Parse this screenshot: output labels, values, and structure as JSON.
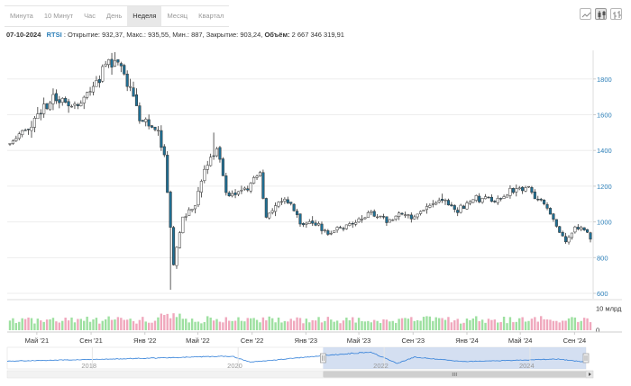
{
  "tabs": [
    {
      "label": "Минута",
      "active": false
    },
    {
      "label": "10 Минут",
      "active": false
    },
    {
      "label": "Час",
      "active": false
    },
    {
      "label": "День",
      "active": false
    },
    {
      "label": "Неделя",
      "active": true
    },
    {
      "label": "Месяц",
      "active": false
    },
    {
      "label": "Квартал",
      "active": false
    }
  ],
  "toolbar_icons": [
    "line-chart-icon",
    "candlestick-icon",
    "ohlc-bars-icon"
  ],
  "info": {
    "date": "07-10-2024",
    "symbol": "RTSI",
    "open_label": ": Открытие:",
    "open": "932,37,",
    "high_label": "Макс.:",
    "high": "935,55,",
    "low_label": "Мин.:",
    "low": "887,",
    "close_label": "Закрытие:",
    "close": "903,24,",
    "volume_label": "Объём:",
    "volume": "2 667 346 319,91"
  },
  "colors": {
    "up": "#ffffff",
    "down": "#1f6f94",
    "wick": "#333333",
    "vol_up": "#9de0a0",
    "vol_down": "#f0a8bd",
    "axis_text": "#2c7fb8",
    "nav_line": "#2f7ed8",
    "nav_fill": "#c5d4ec"
  },
  "chart_data": {
    "type": "candlestick",
    "interval": "week",
    "x_range": [
      "2024-03-01",
      "2024-10-07"
    ],
    "y_axis": {
      "ticks": [
        600,
        800,
        1000,
        1200,
        1400,
        1600,
        1800
      ],
      "labels": [
        "600",
        "800",
        "1000",
        "1200",
        "1400",
        "1600",
        "1800"
      ],
      "range": [
        570,
        1960
      ]
    },
    "volume_axis": {
      "ticks": [
        0,
        10
      ],
      "labels": [
        "0",
        "10 млрд"
      ],
      "range": [
        0,
        12
      ]
    },
    "x_tick_labels": [
      "Май '21",
      "Сен '21",
      "Янв '22",
      "Май '22",
      "Сен '22",
      "Янв '23",
      "Май '23",
      "Сен '23",
      "Янв '24",
      "Май '24",
      "Сен '24"
    ],
    "anchors": [
      {
        "x": "2021-03-01",
        "y": 1440
      },
      {
        "x": "2021-03-29",
        "y": 1500
      },
      {
        "x": "2021-04-26",
        "y": 1560
      },
      {
        "x": "2021-06-07",
        "y": 1690
      },
      {
        "x": "2021-08-02",
        "y": 1650
      },
      {
        "x": "2021-09-06",
        "y": 1770
      },
      {
        "x": "2021-10-25",
        "y": 1920
      },
      {
        "x": "2021-11-15",
        "y": 1820
      },
      {
        "x": "2021-12-20",
        "y": 1590
      },
      {
        "x": "2022-01-31",
        "y": 1490
      },
      {
        "x": "2022-02-14",
        "y": 1380
      },
      {
        "x": "2022-03-07",
        "y": 760
      },
      {
        "x": "2022-03-28",
        "y": 1020
      },
      {
        "x": "2022-04-25",
        "y": 1100
      },
      {
        "x": "2022-05-23",
        "y": 1340
      },
      {
        "x": "2022-06-13",
        "y": 1420
      },
      {
        "x": "2022-07-04",
        "y": 1170
      },
      {
        "x": "2022-08-15",
        "y": 1170
      },
      {
        "x": "2022-09-19",
        "y": 1280
      },
      {
        "x": "2022-10-03",
        "y": 1020
      },
      {
        "x": "2022-11-14",
        "y": 1140
      },
      {
        "x": "2022-12-19",
        "y": 1000
      },
      {
        "x": "2023-01-30",
        "y": 980
      },
      {
        "x": "2023-02-20",
        "y": 930
      },
      {
        "x": "2023-04-03",
        "y": 980
      },
      {
        "x": "2023-05-29",
        "y": 1050
      },
      {
        "x": "2023-07-10",
        "y": 1000
      },
      {
        "x": "2023-08-07",
        "y": 1050
      },
      {
        "x": "2023-09-04",
        "y": 1020
      },
      {
        "x": "2023-10-30",
        "y": 1130
      },
      {
        "x": "2023-12-11",
        "y": 1070
      },
      {
        "x": "2024-01-22",
        "y": 1130
      },
      {
        "x": "2024-03-04",
        "y": 1120
      },
      {
        "x": "2024-04-08",
        "y": 1170
      },
      {
        "x": "2024-05-20",
        "y": 1200
      },
      {
        "x": "2024-06-03",
        "y": 1140
      },
      {
        "x": "2024-07-01",
        "y": 1080
      },
      {
        "x": "2024-08-12",
        "y": 880
      },
      {
        "x": "2024-09-02",
        "y": 960
      },
      {
        "x": "2024-09-23",
        "y": 960
      },
      {
        "x": "2024-10-07",
        "y": 903
      }
    ],
    "navigator": {
      "tick_labels": [
        "2018",
        "2020",
        "2022",
        "2024"
      ],
      "anchors": [
        {
          "x": "2016-11-01",
          "y": 1000
        },
        {
          "x": "2018-04-01",
          "y": 1200
        },
        {
          "x": "2019-12-01",
          "y": 1500
        },
        {
          "x": "2020-03-01",
          "y": 900
        },
        {
          "x": "2021-01-01",
          "y": 1450
        },
        {
          "x": "2021-10-25",
          "y": 1920
        },
        {
          "x": "2022-03-07",
          "y": 760
        },
        {
          "x": "2022-06-01",
          "y": 1400
        },
        {
          "x": "2023-02-01",
          "y": 950
        },
        {
          "x": "2024-05-20",
          "y": 1200
        },
        {
          "x": "2024-10-07",
          "y": 903
        }
      ]
    }
  }
}
